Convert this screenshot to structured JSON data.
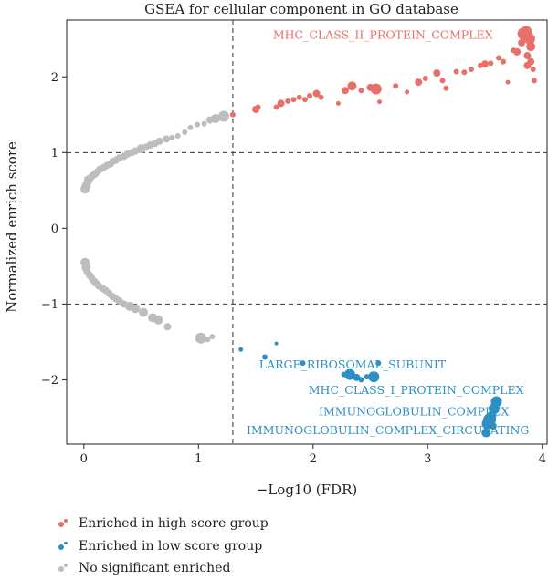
{
  "chart_data": {
    "type": "scatter",
    "title": "GSEA for cellular component in GO database",
    "xlabel": "−Log10 (FDR)",
    "ylabel": "Normalized enrich score",
    "xlim": [
      -0.15,
      4.05
    ],
    "ylim": [
      -2.85,
      2.75
    ],
    "xticks": [
      0,
      1,
      2,
      3,
      4
    ],
    "yticks": [
      -2,
      -1,
      0,
      1,
      2
    ],
    "thresholds": {
      "x": 1.3,
      "y": [
        -1,
        1
      ]
    },
    "colors": {
      "high": "#E8706A",
      "low": "#2E8FC4",
      "ns": "#BDBDBD"
    },
    "series": [
      {
        "name": "Enriched in high score group",
        "color": "#E8706A",
        "points": [
          [
            1.3,
            1.5,
            3
          ],
          [
            1.5,
            1.57,
            4
          ],
          [
            1.52,
            1.6,
            3
          ],
          [
            1.68,
            1.6,
            3
          ],
          [
            1.72,
            1.65,
            4
          ],
          [
            1.78,
            1.68,
            3
          ],
          [
            1.83,
            1.7,
            3
          ],
          [
            1.88,
            1.73,
            3
          ],
          [
            1.93,
            1.7,
            3
          ],
          [
            1.97,
            1.75,
            3
          ],
          [
            2.03,
            1.78,
            4
          ],
          [
            2.07,
            1.73,
            3
          ],
          [
            2.22,
            1.65,
            2.5
          ],
          [
            2.28,
            1.82,
            4
          ],
          [
            2.34,
            1.88,
            5
          ],
          [
            2.42,
            1.82,
            3
          ],
          [
            2.5,
            1.86,
            4
          ],
          [
            2.55,
            1.84,
            6
          ],
          [
            2.58,
            1.67,
            2.5
          ],
          [
            2.72,
            1.88,
            3
          ],
          [
            2.82,
            1.8,
            2.5
          ],
          [
            2.92,
            1.93,
            4
          ],
          [
            2.98,
            1.98,
            3
          ],
          [
            3.08,
            2.05,
            4
          ],
          [
            3.13,
            1.95,
            3
          ],
          [
            3.16,
            1.85,
            3
          ],
          [
            3.25,
            2.07,
            3
          ],
          [
            3.32,
            2.06,
            3
          ],
          [
            3.38,
            2.1,
            3
          ],
          [
            3.46,
            2.15,
            3
          ],
          [
            3.5,
            2.17,
            4
          ],
          [
            3.55,
            2.18,
            3
          ],
          [
            3.62,
            2.25,
            3
          ],
          [
            3.66,
            2.2,
            3
          ],
          [
            3.7,
            1.93,
            2.5
          ],
          [
            3.75,
            2.35,
            3
          ],
          [
            3.78,
            2.33,
            4
          ],
          [
            3.82,
            2.45,
            4
          ],
          [
            3.84,
            2.57,
            7
          ],
          [
            3.86,
            2.6,
            6
          ],
          [
            3.88,
            2.55,
            5
          ],
          [
            3.89,
            2.5,
            6
          ],
          [
            3.9,
            2.4,
            5
          ],
          [
            3.87,
            2.28,
            4
          ],
          [
            3.9,
            2.2,
            4
          ],
          [
            3.87,
            2.15,
            4
          ],
          [
            3.92,
            2.1,
            3
          ],
          [
            3.93,
            1.95,
            3
          ]
        ]
      },
      {
        "name": "Enriched in low score group",
        "color": "#2E8FC4",
        "points": [
          [
            1.37,
            -1.6,
            2.5
          ],
          [
            1.58,
            -1.7,
            3
          ],
          [
            1.68,
            -1.52,
            2
          ],
          [
            1.91,
            -1.78,
            3
          ],
          [
            2.27,
            -1.93,
            3
          ],
          [
            2.32,
            -1.93,
            6
          ],
          [
            2.38,
            -1.97,
            4
          ],
          [
            2.42,
            -2.0,
            3
          ],
          [
            2.47,
            -1.96,
            3
          ],
          [
            2.53,
            -1.96,
            6
          ],
          [
            2.57,
            -1.78,
            3
          ],
          [
            3.52,
            -2.58,
            6
          ],
          [
            3.54,
            -2.53,
            7
          ],
          [
            3.56,
            -2.47,
            5
          ],
          [
            3.58,
            -2.38,
            6
          ],
          [
            3.6,
            -2.29,
            6
          ],
          [
            3.57,
            -2.61,
            4
          ],
          [
            3.51,
            -2.7,
            5
          ]
        ]
      },
      {
        "name": "No significant enriched",
        "color": "#BDBDBD",
        "points": [
          [
            0.01,
            0.52,
            5
          ],
          [
            0.02,
            0.56,
            5
          ],
          [
            0.03,
            0.6,
            4
          ],
          [
            0.04,
            0.64,
            5
          ],
          [
            0.06,
            0.67,
            4
          ],
          [
            0.08,
            0.7,
            4
          ],
          [
            0.1,
            0.72,
            4
          ],
          [
            0.12,
            0.75,
            4
          ],
          [
            0.14,
            0.78,
            4
          ],
          [
            0.17,
            0.8,
            4
          ],
          [
            0.2,
            0.83,
            4
          ],
          [
            0.23,
            0.85,
            4
          ],
          [
            0.25,
            0.88,
            4
          ],
          [
            0.28,
            0.9,
            4
          ],
          [
            0.31,
            0.93,
            4
          ],
          [
            0.35,
            0.95,
            4
          ],
          [
            0.38,
            0.98,
            4
          ],
          [
            0.42,
            1.0,
            4
          ],
          [
            0.45,
            1.02,
            4
          ],
          [
            0.5,
            1.05,
            5
          ],
          [
            0.54,
            1.07,
            4
          ],
          [
            0.58,
            1.1,
            4
          ],
          [
            0.62,
            1.12,
            4
          ],
          [
            0.66,
            1.15,
            4
          ],
          [
            0.72,
            1.18,
            4
          ],
          [
            0.77,
            1.2,
            3
          ],
          [
            0.82,
            1.22,
            3
          ],
          [
            0.88,
            1.27,
            3
          ],
          [
            0.93,
            1.33,
            3
          ],
          [
            0.99,
            1.37,
            3
          ],
          [
            1.05,
            1.38,
            3
          ],
          [
            1.1,
            1.43,
            4
          ],
          [
            1.15,
            1.45,
            5
          ],
          [
            1.22,
            1.48,
            6
          ],
          [
            0.01,
            -0.45,
            5
          ],
          [
            0.02,
            -0.52,
            5
          ],
          [
            0.03,
            -0.58,
            4
          ],
          [
            0.05,
            -0.62,
            4
          ],
          [
            0.07,
            -0.66,
            4
          ],
          [
            0.09,
            -0.7,
            4
          ],
          [
            0.11,
            -0.73,
            4
          ],
          [
            0.13,
            -0.76,
            4
          ],
          [
            0.16,
            -0.79,
            4
          ],
          [
            0.19,
            -0.82,
            4
          ],
          [
            0.22,
            -0.86,
            4
          ],
          [
            0.25,
            -0.9,
            4
          ],
          [
            0.28,
            -0.93,
            4
          ],
          [
            0.31,
            -0.96,
            4
          ],
          [
            0.35,
            -1.0,
            4
          ],
          [
            0.4,
            -1.03,
            5
          ],
          [
            0.45,
            -1.06,
            5
          ],
          [
            0.52,
            -1.11,
            5
          ],
          [
            0.6,
            -1.18,
            5
          ],
          [
            0.65,
            -1.21,
            5
          ],
          [
            0.73,
            -1.3,
            4
          ],
          [
            1.02,
            -1.45,
            6
          ],
          [
            1.08,
            -1.47,
            3
          ],
          [
            1.12,
            -1.43,
            3
          ]
        ]
      }
    ],
    "annotations": [
      {
        "text": "MHC_CLASS_II_PROTEIN_COMPLEX",
        "x": 1.65,
        "y": 2.55,
        "color": "#E8706A"
      },
      {
        "text": "LARGE_RIBOSOMAL_SUBUNIT",
        "x": 1.53,
        "y": -1.8,
        "color": "#2E8FC4"
      },
      {
        "text": "MHC_CLASS_I_PROTEIN_COMPLEX",
        "x": 1.96,
        "y": -2.14,
        "color": "#2E8FC4"
      },
      {
        "text": "IMMUNOGLOBULIN_COMPLEX",
        "x": 2.05,
        "y": -2.42,
        "color": "#2E8FC4"
      },
      {
        "text": "IMMUNOGLOBULIN_COMPLEX_CIRCULATING",
        "x": 1.42,
        "y": -2.67,
        "color": "#2E8FC4"
      }
    ],
    "legend": {
      "position": "bottom-left",
      "items": [
        {
          "label": "Enriched in high score group",
          "color": "#E8706A"
        },
        {
          "label": "Enriched in low score group",
          "color": "#2E8FC4"
        },
        {
          "label": "No significant enriched",
          "color": "#BDBDBD"
        }
      ]
    }
  }
}
